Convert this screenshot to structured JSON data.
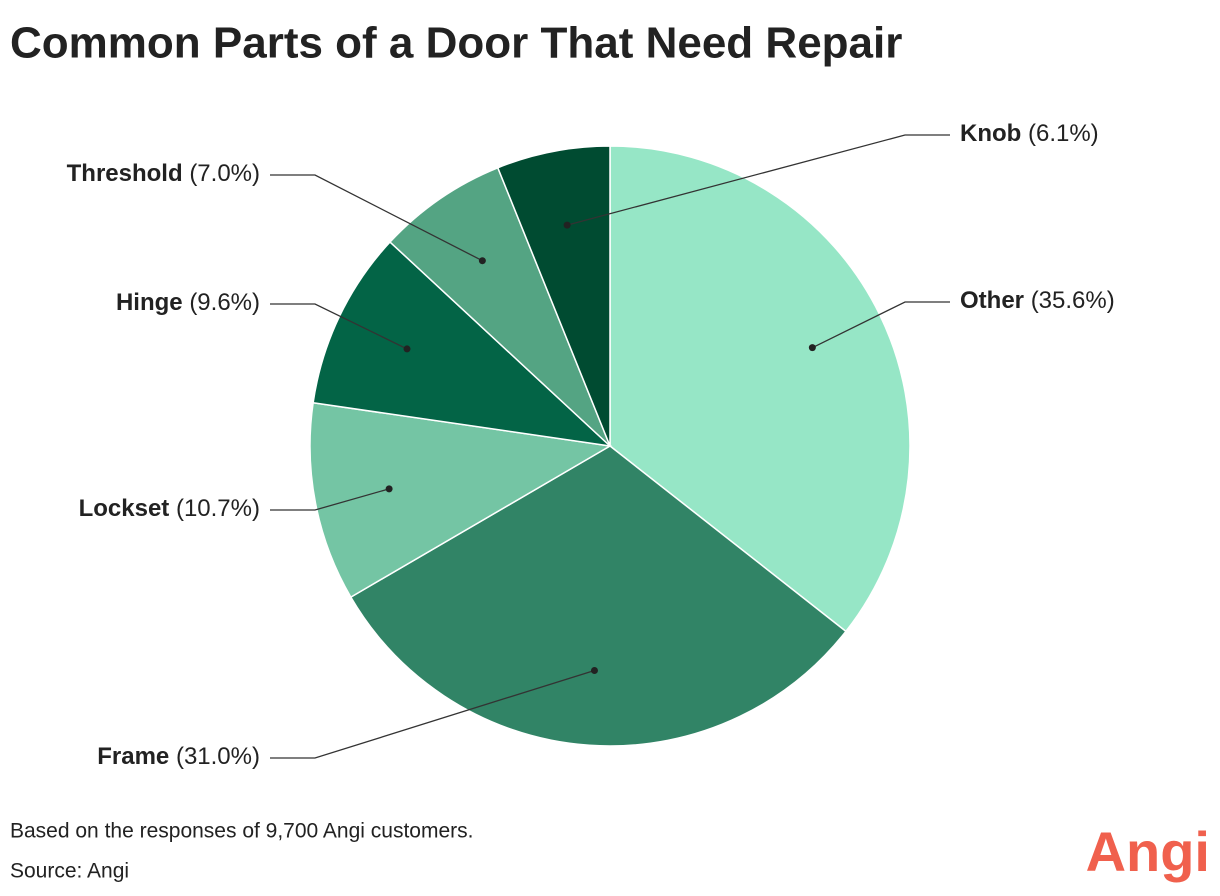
{
  "chart_data": {
    "type": "pie",
    "title": "Common Parts of a Door That Need Repair",
    "categories": [
      "Other",
      "Frame",
      "Lockset",
      "Hinge",
      "Threshold",
      "Knob"
    ],
    "values": [
      35.6,
      31.0,
      10.7,
      9.6,
      7.0,
      6.1
    ],
    "value_labels": [
      "(35.6%)",
      "(31.0%)",
      "(10.7%)",
      "(9.6%)",
      "(7.0%)",
      "(6.1%)"
    ],
    "colors": [
      "#96e6c6",
      "#318466",
      "#74c5a4",
      "#036446",
      "#54a483",
      "#004b31"
    ],
    "note": "Based on the responses of 9,700 Angi customers.",
    "source": "Source: Angi"
  },
  "logo": "Angi"
}
